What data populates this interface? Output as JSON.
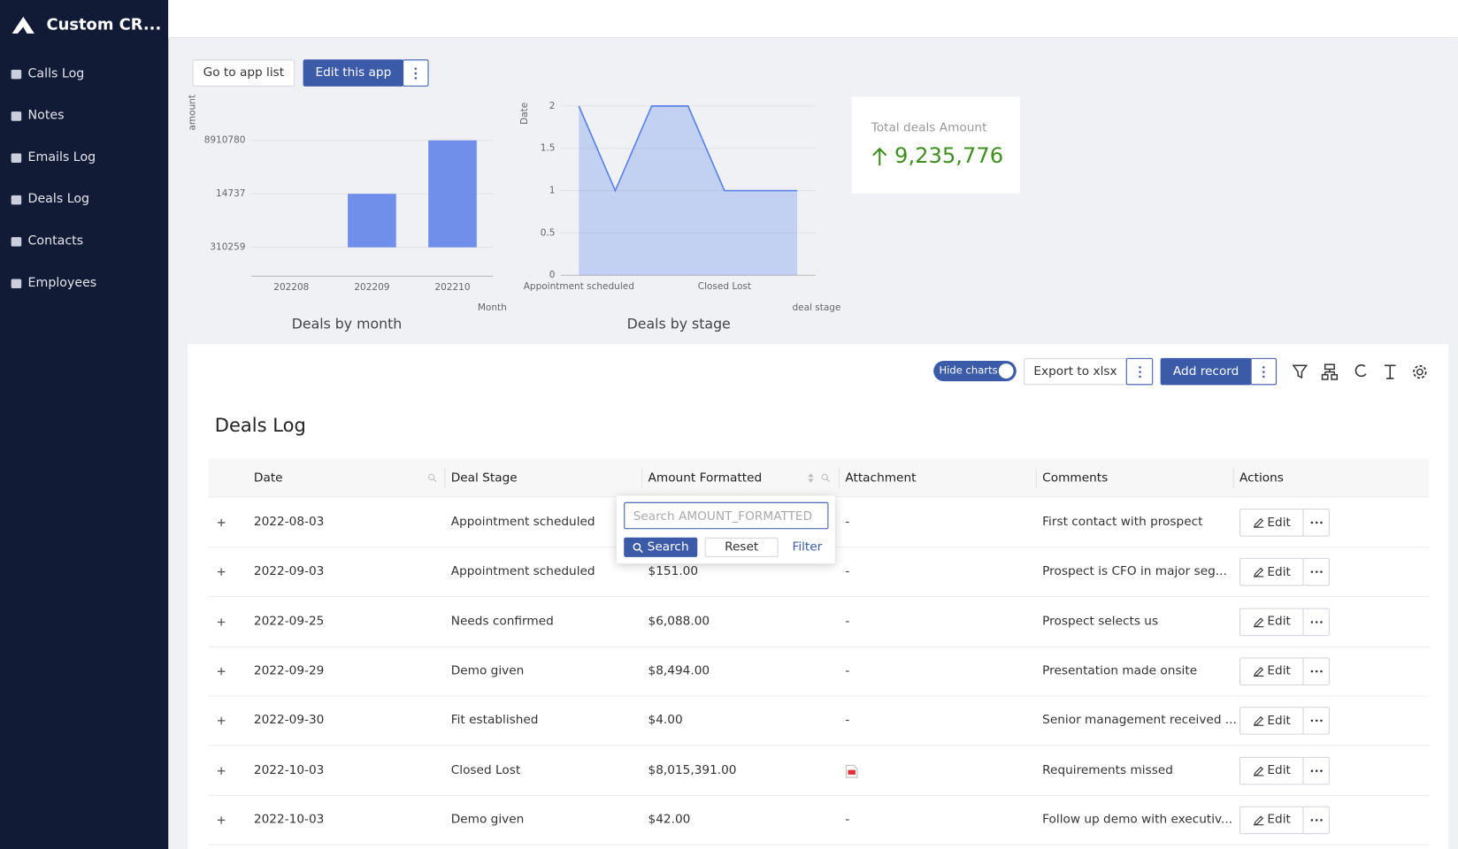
{
  "sidebar": {
    "brand": "Custom CR...",
    "items": [
      "Calls Log",
      "Notes",
      "Emails Log",
      "Deals Log",
      "Contacts",
      "Employees"
    ]
  },
  "app_buttons": {
    "go_to_list": "Go to app list",
    "edit_app": "Edit this app"
  },
  "chart_data": [
    {
      "type": "bar",
      "title": "Deals by month",
      "x_label": "Month",
      "y_label": "amount",
      "categories": [
        "202208",
        "202209",
        "202210"
      ],
      "values": [
        0,
        1,
        2
      ],
      "color": "#6f8fea",
      "ylim": [
        -0.54,
        2.66
      ],
      "yticks": [
        {
          "value": 0,
          "label": "310259"
        },
        {
          "value": 1,
          "label": "14737"
        },
        {
          "value": 2,
          "label": "8910780"
        }
      ],
      "grid": true
    },
    {
      "type": "area",
      "title": "Deals by stage",
      "x_label": "deal stage",
      "y_label": "Date",
      "categories": [
        "Appointment scheduled",
        null,
        null,
        null,
        "Closed Lost",
        null,
        null
      ],
      "values": [
        2,
        1,
        2,
        2,
        1,
        1,
        1
      ],
      "color": "#5b84e8",
      "ylim": [
        0,
        2
      ],
      "yticks": [
        0,
        0.5,
        1,
        1.5,
        2
      ],
      "grid": true
    }
  ],
  "kpi": {
    "label": "Total deals Amount",
    "value": "9,235,776"
  },
  "toolbar": {
    "toggle": "Hide charts",
    "export": "Export to xlsx",
    "add": "Add record"
  },
  "table": {
    "title": "Deals Log",
    "columns": [
      "Date",
      "Deal Stage",
      "Amount Formatted",
      "Attachment",
      "Comments",
      "Actions"
    ],
    "row_action": "Edit",
    "rows": [
      {
        "date": "2022-08-03",
        "stage": "Appointment scheduled",
        "attachment": "-",
        "comment": "First contact with prospect"
      },
      {
        "date": "2022-09-03",
        "stage": "Appointment scheduled",
        "amount": "$151.00",
        "attachment": "-",
        "comment": "Prospect is CFO in major seg..."
      },
      {
        "date": "2022-09-25",
        "stage": "Needs confirmed",
        "amount": "$6,088.00",
        "attachment": "-",
        "comment": "Prospect selects us"
      },
      {
        "date": "2022-09-29",
        "stage": "Demo given",
        "amount": "$8,494.00",
        "attachment": "-",
        "comment": "Presentation made onsite"
      },
      {
        "date": "2022-09-30",
        "stage": "Fit established",
        "amount": "$4.00",
        "attachment": "-",
        "comment": "Senior management received ..."
      },
      {
        "date": "2022-10-03",
        "stage": "Closed Lost",
        "amount": "$8,015,391.00",
        "attachment_type": "pdf",
        "comment": "Requirements missed"
      },
      {
        "date": "2022-10-03",
        "stage": "Demo given",
        "amount": "$42.00",
        "attachment": "-",
        "comment": "Follow up demo with executiv..."
      }
    ]
  },
  "search_popup": {
    "placeholder": "Search AMOUNT_FORMATTED",
    "search": "Search",
    "reset": "Reset",
    "filter": "Filter"
  }
}
